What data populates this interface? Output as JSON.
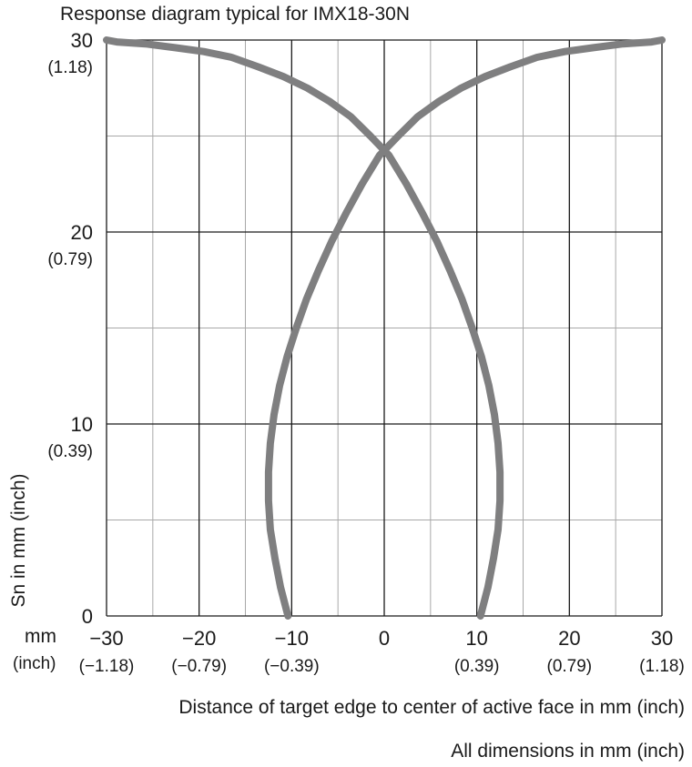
{
  "chart_data": {
    "type": "line",
    "title": "Response diagram typical for IMX18-30N",
    "xlabel": "Distance of target edge to center of active face in mm (inch)",
    "ylabel": "Sn in mm (inch)",
    "note": "All dimensions in mm (inch)",
    "x_unit_label": "mm",
    "x_unit_label_secondary": "(inch)",
    "xlim": [
      -30,
      30
    ],
    "ylim": [
      0,
      30
    ],
    "x_ticks": [
      {
        "value": -30,
        "label": "−30",
        "sublabel": "(−1.18)"
      },
      {
        "value": -20,
        "label": "−20",
        "sublabel": "(−0.79)"
      },
      {
        "value": -10,
        "label": "−10",
        "sublabel": "(−0.39)"
      },
      {
        "value": 0,
        "label": "0",
        "sublabel": ""
      },
      {
        "value": 10,
        "label": "10",
        "sublabel": "(0.39)"
      },
      {
        "value": 20,
        "label": "20",
        "sublabel": "(0.79)"
      },
      {
        "value": 30,
        "label": "30",
        "sublabel": "(1.18)"
      }
    ],
    "y_ticks": [
      {
        "value": 0,
        "label": "0",
        "sublabel": ""
      },
      {
        "value": 10,
        "label": "10",
        "sublabel": "(0.39)"
      },
      {
        "value": 20,
        "label": "20",
        "sublabel": "(0.79)"
      },
      {
        "value": 30,
        "label": "30",
        "sublabel": "(1.18)"
      }
    ],
    "grid": {
      "major_step": 10,
      "minor_step": 5
    },
    "series": [
      {
        "color": "#7f7f80",
        "x": [
          -10.4,
          -11.2,
          -11.8,
          -12.3,
          -12.5,
          -12.5,
          -12.3,
          -11.9,
          -11.3,
          -10.5,
          -9.5,
          -8.4,
          -7.1,
          -5.7,
          -4.1,
          -2.4,
          -0.5,
          1.5,
          3.6,
          5.9,
          8.3,
          10.9,
          13.6,
          16.5,
          19.5,
          22.6,
          25.8,
          28.9,
          30.0
        ],
        "y": [
          0.0,
          1.5,
          3.0,
          4.5,
          6.0,
          7.5,
          9.0,
          10.5,
          12.0,
          13.5,
          15.0,
          16.5,
          18.0,
          19.5,
          21.0,
          22.5,
          24.0,
          25.0,
          26.0,
          26.8,
          27.5,
          28.1,
          28.6,
          29.1,
          29.4,
          29.6,
          29.8,
          29.9,
          30.0
        ]
      },
      {
        "color": "#7f7f80",
        "x": [
          10.4,
          11.2,
          11.8,
          12.3,
          12.5,
          12.5,
          12.3,
          11.9,
          11.3,
          10.5,
          9.5,
          8.4,
          7.1,
          5.7,
          4.1,
          2.4,
          0.5,
          -1.5,
          -3.6,
          -5.9,
          -8.3,
          -10.9,
          -13.6,
          -16.5,
          -19.5,
          -22.6,
          -25.8,
          -28.9,
          -30.0
        ],
        "y": [
          0.0,
          1.5,
          3.0,
          4.5,
          6.0,
          7.5,
          9.0,
          10.5,
          12.0,
          13.5,
          15.0,
          16.5,
          18.0,
          19.5,
          21.0,
          22.5,
          24.0,
          25.0,
          26.0,
          26.8,
          27.5,
          28.1,
          28.6,
          29.1,
          29.4,
          29.6,
          29.8,
          29.9,
          30.0
        ]
      }
    ]
  }
}
